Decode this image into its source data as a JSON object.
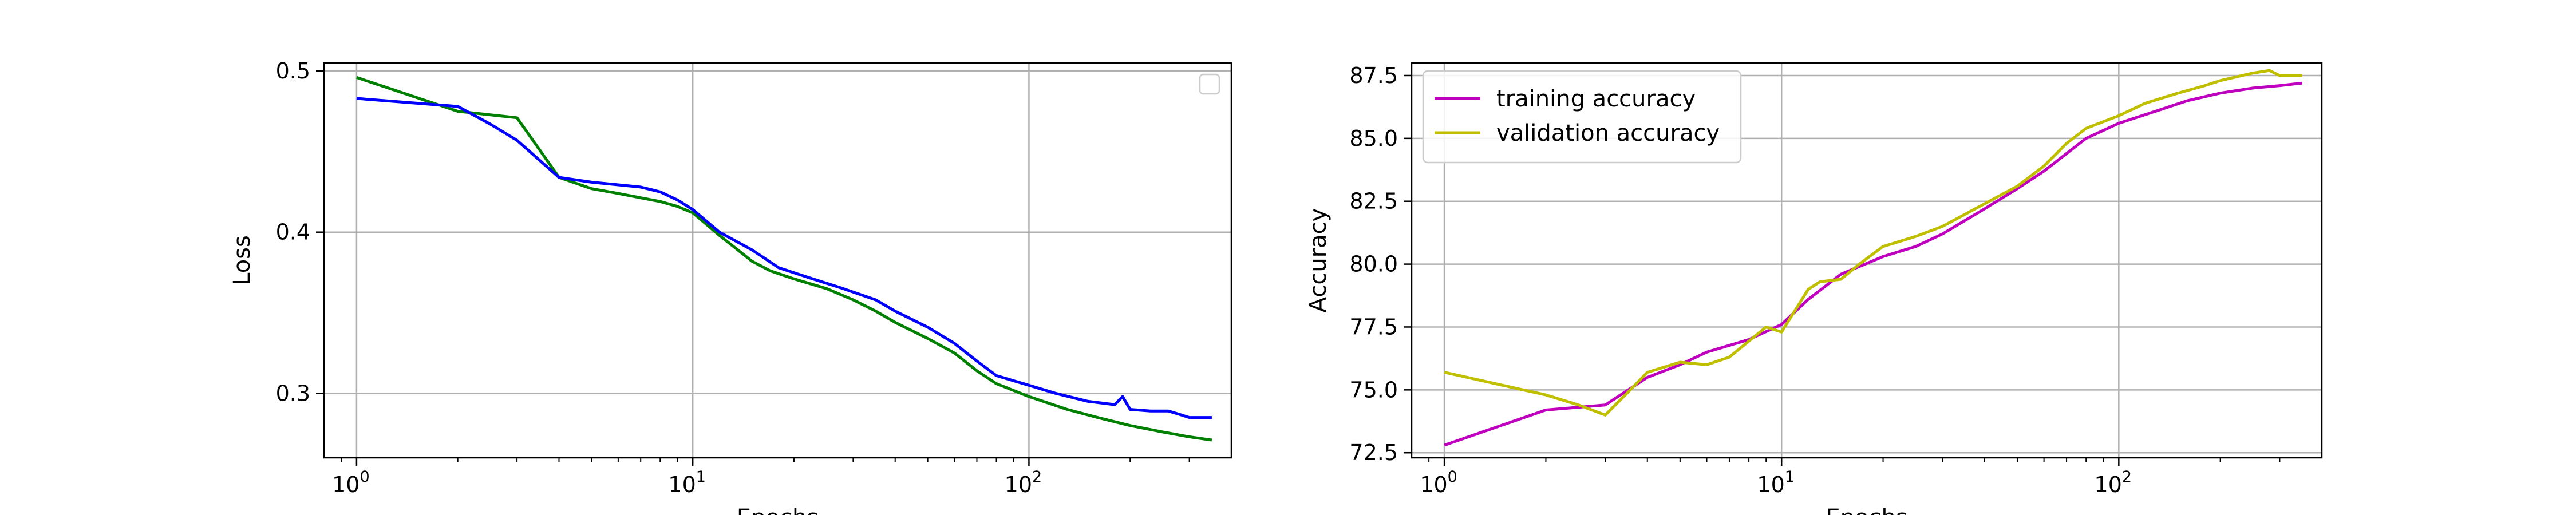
{
  "chart_data": [
    {
      "type": "line",
      "xlabel": "Epochs",
      "ylabel": "Loss",
      "xscale": "log",
      "xlim": [
        0.8,
        400
      ],
      "ylim": [
        0.26,
        0.505
      ],
      "grid": true,
      "legend": {
        "placement": "top-right",
        "entries": []
      },
      "x_ticks": [
        {
          "value": 1,
          "base": "10",
          "exp": "0"
        },
        {
          "value": 10,
          "base": "10",
          "exp": "1"
        },
        {
          "value": 100,
          "base": "10",
          "exp": "2"
        }
      ],
      "y_ticks": [
        {
          "value": 0.3,
          "label": "0.3"
        },
        {
          "value": 0.4,
          "label": "0.4"
        },
        {
          "value": 0.5,
          "label": "0.5"
        }
      ],
      "series": [
        {
          "color": "#008000",
          "points": [
            [
              1,
              0.496
            ],
            [
              2,
              0.475
            ],
            [
              3,
              0.471
            ],
            [
              4,
              0.434
            ],
            [
              5,
              0.427
            ],
            [
              6,
              0.424
            ],
            [
              8,
              0.419
            ],
            [
              9,
              0.416
            ],
            [
              10,
              0.412
            ],
            [
              12,
              0.398
            ],
            [
              15,
              0.382
            ],
            [
              17,
              0.376
            ],
            [
              20,
              0.371
            ],
            [
              25,
              0.365
            ],
            [
              30,
              0.358
            ],
            [
              35,
              0.351
            ],
            [
              40,
              0.344
            ],
            [
              50,
              0.334
            ],
            [
              60,
              0.325
            ],
            [
              70,
              0.314
            ],
            [
              80,
              0.306
            ],
            [
              100,
              0.298
            ],
            [
              130,
              0.29
            ],
            [
              160,
              0.285
            ],
            [
              200,
              0.28
            ],
            [
              250,
              0.276
            ],
            [
              300,
              0.273
            ],
            [
              350,
              0.271
            ]
          ]
        },
        {
          "color": "#0000ff",
          "points": [
            [
              1,
              0.483
            ],
            [
              2,
              0.478
            ],
            [
              2.5,
              0.467
            ],
            [
              3,
              0.457
            ],
            [
              4,
              0.434
            ],
            [
              5,
              0.431
            ],
            [
              7,
              0.428
            ],
            [
              8,
              0.425
            ],
            [
              9,
              0.42
            ],
            [
              10,
              0.414
            ],
            [
              12,
              0.4
            ],
            [
              15,
              0.389
            ],
            [
              18,
              0.378
            ],
            [
              22,
              0.372
            ],
            [
              28,
              0.365
            ],
            [
              35,
              0.358
            ],
            [
              40,
              0.351
            ],
            [
              50,
              0.341
            ],
            [
              60,
              0.331
            ],
            [
              70,
              0.32
            ],
            [
              80,
              0.311
            ],
            [
              100,
              0.305
            ],
            [
              120,
              0.3
            ],
            [
              150,
              0.295
            ],
            [
              180,
              0.293
            ],
            [
              190,
              0.298
            ],
            [
              200,
              0.29
            ],
            [
              230,
              0.289
            ],
            [
              260,
              0.289
            ],
            [
              280,
              0.287
            ],
            [
              300,
              0.285
            ],
            [
              350,
              0.285
            ]
          ]
        }
      ]
    },
    {
      "type": "line",
      "xlabel": "Epochs",
      "ylabel": "Accuracy",
      "xscale": "log",
      "xlim": [
        0.8,
        400
      ],
      "ylim": [
        72.3,
        88.0
      ],
      "grid": true,
      "legend": {
        "placement": "top-left",
        "entries": [
          "training accuracy",
          "validation accuracy"
        ]
      },
      "x_ticks": [
        {
          "value": 1,
          "base": "10",
          "exp": "0"
        },
        {
          "value": 10,
          "base": "10",
          "exp": "1"
        },
        {
          "value": 100,
          "base": "10",
          "exp": "2"
        }
      ],
      "y_ticks": [
        {
          "value": 72.5,
          "label": "72.5"
        },
        {
          "value": 75.0,
          "label": "75.0"
        },
        {
          "value": 77.5,
          "label": "77.5"
        },
        {
          "value": 80.0,
          "label": "80.0"
        },
        {
          "value": 82.5,
          "label": "82.5"
        },
        {
          "value": 85.0,
          "label": "85.0"
        },
        {
          "value": 87.5,
          "label": "87.5"
        }
      ],
      "series": [
        {
          "name": "training accuracy",
          "color": "#bf00bf",
          "points": [
            [
              1,
              72.8
            ],
            [
              2,
              74.2
            ],
            [
              3,
              74.4
            ],
            [
              4,
              75.5
            ],
            [
              5,
              76.0
            ],
            [
              6,
              76.5
            ],
            [
              8,
              77.0
            ],
            [
              10,
              77.6
            ],
            [
              12,
              78.6
            ],
            [
              15,
              79.6
            ],
            [
              20,
              80.3
            ],
            [
              25,
              80.7
            ],
            [
              30,
              81.2
            ],
            [
              40,
              82.2
            ],
            [
              50,
              83.0
            ],
            [
              60,
              83.7
            ],
            [
              80,
              85.0
            ],
            [
              100,
              85.6
            ],
            [
              130,
              86.1
            ],
            [
              160,
              86.5
            ],
            [
              200,
              86.8
            ],
            [
              250,
              87.0
            ],
            [
              300,
              87.1
            ],
            [
              350,
              87.2
            ]
          ]
        },
        {
          "name": "validation accuracy",
          "color": "#bfbf00",
          "points": [
            [
              1,
              75.7
            ],
            [
              2,
              74.8
            ],
            [
              2.5,
              74.4
            ],
            [
              3,
              74.0
            ],
            [
              3.5,
              74.9
            ],
            [
              4,
              75.7
            ],
            [
              5,
              76.1
            ],
            [
              6,
              76.0
            ],
            [
              7,
              76.3
            ],
            [
              9,
              77.5
            ],
            [
              10,
              77.3
            ],
            [
              12,
              79.0
            ],
            [
              13,
              79.3
            ],
            [
              15,
              79.4
            ],
            [
              17,
              80.0
            ],
            [
              20,
              80.7
            ],
            [
              25,
              81.1
            ],
            [
              30,
              81.5
            ],
            [
              40,
              82.4
            ],
            [
              50,
              83.1
            ],
            [
              60,
              83.9
            ],
            [
              70,
              84.8
            ],
            [
              80,
              85.4
            ],
            [
              100,
              85.9
            ],
            [
              120,
              86.4
            ],
            [
              150,
              86.8
            ],
            [
              180,
              87.1
            ],
            [
              200,
              87.3
            ],
            [
              250,
              87.6
            ],
            [
              280,
              87.7
            ],
            [
              300,
              87.5
            ],
            [
              350,
              87.5
            ]
          ]
        }
      ]
    }
  ]
}
